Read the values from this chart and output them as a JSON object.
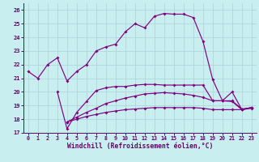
{
  "xlabel": "Windchill (Refroidissement éolien,°C)",
  "xlim": [
    -0.5,
    23.5
  ],
  "ylim": [
    17,
    26.5
  ],
  "yticks": [
    17,
    18,
    19,
    20,
    21,
    22,
    23,
    24,
    25,
    26
  ],
  "xticks": [
    0,
    1,
    2,
    3,
    4,
    5,
    6,
    7,
    8,
    9,
    10,
    11,
    12,
    13,
    14,
    15,
    16,
    17,
    18,
    19,
    20,
    21,
    22,
    23
  ],
  "background_color": "#c8eef0",
  "grid_color": "#aad4d8",
  "line_color": "#800080",
  "line1_x": [
    0,
    1,
    2,
    3,
    4,
    5,
    6,
    7,
    8,
    9,
    10,
    11,
    12,
    13,
    14,
    15,
    16,
    17,
    18,
    19,
    20,
    21,
    22,
    23
  ],
  "line1_y": [
    21.5,
    21.0,
    22.0,
    22.5,
    20.8,
    21.5,
    22.0,
    23.0,
    23.3,
    23.5,
    24.4,
    25.0,
    24.7,
    25.55,
    25.75,
    25.7,
    25.7,
    25.45,
    23.7,
    20.9,
    19.35,
    20.0,
    18.7,
    18.8
  ],
  "line2_x": [
    3,
    4,
    5,
    6,
    7,
    8,
    9,
    10,
    11,
    12,
    13,
    14,
    15,
    16,
    17,
    18,
    19,
    20,
    21,
    22,
    23
  ],
  "line2_y": [
    20.0,
    17.3,
    18.5,
    19.3,
    20.1,
    20.3,
    20.4,
    20.4,
    20.5,
    20.55,
    20.55,
    20.5,
    20.5,
    20.5,
    20.5,
    20.5,
    19.35,
    19.35,
    19.3,
    18.7,
    18.85
  ],
  "line3_x": [
    4,
    5,
    6,
    7,
    8,
    9,
    10,
    11,
    12,
    13,
    14,
    15,
    16,
    17,
    18,
    19,
    20,
    21,
    22,
    23
  ],
  "line3_y": [
    17.8,
    18.15,
    18.5,
    18.8,
    19.15,
    19.35,
    19.55,
    19.7,
    19.85,
    19.9,
    19.95,
    19.9,
    19.85,
    19.75,
    19.6,
    19.35,
    19.35,
    19.35,
    18.75,
    18.85
  ],
  "line4_x": [
    4,
    5,
    6,
    7,
    8,
    9,
    10,
    11,
    12,
    13,
    14,
    15,
    16,
    17,
    18,
    19,
    20,
    21,
    22,
    23
  ],
  "line4_y": [
    17.8,
    18.0,
    18.2,
    18.35,
    18.5,
    18.6,
    18.7,
    18.75,
    18.8,
    18.85,
    18.85,
    18.85,
    18.85,
    18.85,
    18.8,
    18.7,
    18.7,
    18.7,
    18.7,
    18.85
  ]
}
